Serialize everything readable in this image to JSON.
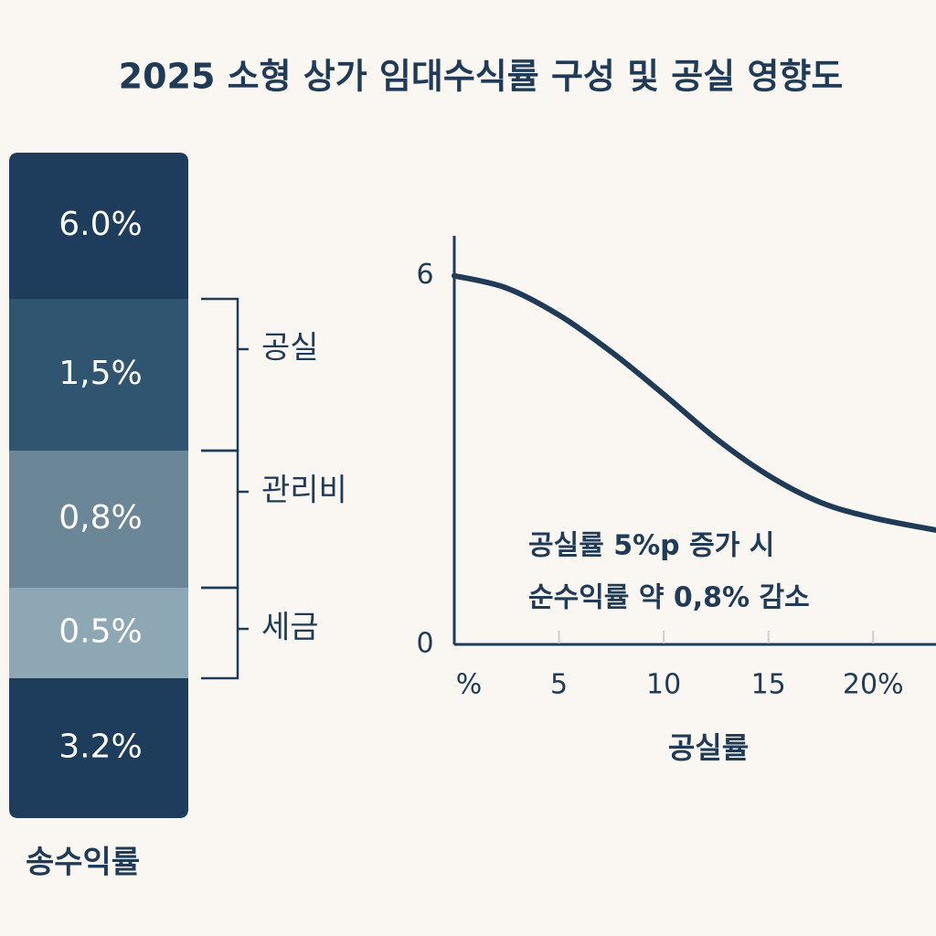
{
  "title": "2025 소형 상가 임대수식률 구성 및 공실 영향도",
  "breakdown": {
    "segments": [
      {
        "label": "6.0%",
        "color": "#1e3d5c"
      },
      {
        "label": "1,5%",
        "color": "#2f5571"
      },
      {
        "label": "0,8%",
        "color": "#6b8797"
      },
      {
        "label": "0.5%",
        "color": "#8ea7b4"
      },
      {
        "label": "3.2%",
        "color": "#1e3d5c"
      }
    ],
    "brackets": [
      "공실",
      "관리비",
      "세금"
    ],
    "caption": "송수익률"
  },
  "chart_data": {
    "type": "line",
    "x_label": "공실률",
    "annotations": [
      "공실률 5%p 증가 시",
      "순수익률 약 0,8% 감소"
    ],
    "xlim": [
      0,
      23
    ],
    "xticks": [
      {
        "value": 0,
        "label": "%"
      },
      5,
      10,
      15,
      {
        "value": 20,
        "label": "20%"
      }
    ],
    "ylim": [
      0,
      6.65
    ],
    "yticks": [
      0,
      6
    ],
    "grid": false,
    "series": [
      {
        "color": "#1f3b57",
        "x": [
          0,
          2.5,
          5,
          7.5,
          10,
          12.5,
          15,
          17.5,
          20,
          23
        ],
        "values": [
          6.0,
          5.8,
          5.36,
          4.76,
          4.07,
          3.35,
          2.75,
          2.31,
          2.06,
          1.86
        ]
      }
    ]
  }
}
